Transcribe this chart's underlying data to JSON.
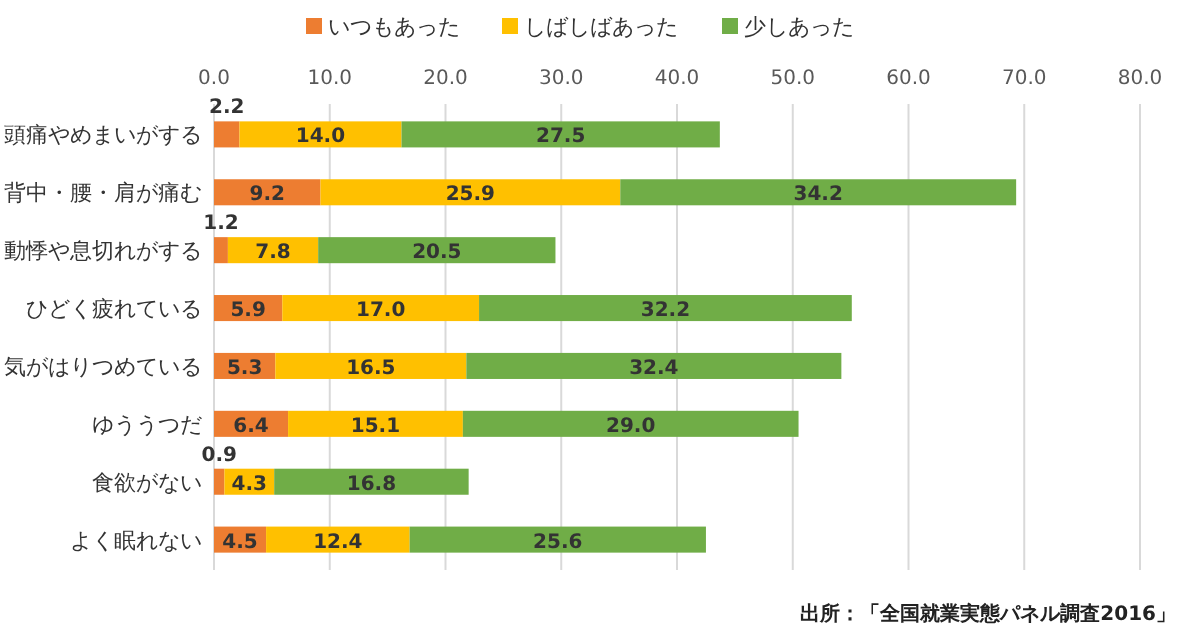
{
  "chart_data": {
    "type": "bar",
    "orientation": "horizontal",
    "stacked": true,
    "categories": [
      "頭痛やめまいがする",
      "背中・腰・肩が痛む",
      "動悸や息切れがする",
      "ひどく疲れている",
      "気がはりつめている",
      "ゆううつだ",
      "食欲がない",
      "よく眠れない"
    ],
    "series": [
      {
        "name": "いつもあった",
        "color": "#ed7d31",
        "values": [
          2.2,
          9.2,
          1.2,
          5.9,
          5.3,
          6.4,
          0.9,
          4.5
        ],
        "value_labels": [
          "2.2",
          "9.2",
          "1.2",
          "5.9",
          "5.3",
          "6.4",
          "0.9",
          "4.5"
        ]
      },
      {
        "name": "しばしばあった",
        "color": "#ffc000",
        "values": [
          14.0,
          25.9,
          7.8,
          17.0,
          16.5,
          15.1,
          4.3,
          12.4
        ],
        "value_labels": [
          "14.0",
          "25.9",
          "7.8",
          "17.0",
          "16.5",
          "15.1",
          "4.3",
          "12.4"
        ]
      },
      {
        "name": "少しあった",
        "color": "#70ad47",
        "values": [
          27.5,
          34.2,
          20.5,
          32.2,
          32.4,
          29.0,
          16.8,
          25.6
        ],
        "value_labels": [
          "27.5",
          "34.2",
          "20.5",
          "32.2",
          "32.4",
          "29.0",
          "16.8",
          "25.6"
        ]
      }
    ],
    "xlim": [
      0,
      80
    ],
    "xticks": [
      {
        "value": 0,
        "label": "0.0"
      },
      {
        "value": 10,
        "label": "10.0"
      },
      {
        "value": 20,
        "label": "20.0"
      },
      {
        "value": 30,
        "label": "30.0"
      },
      {
        "value": 40,
        "label": "40.0"
      },
      {
        "value": 50,
        "label": "50.0"
      },
      {
        "value": 60,
        "label": "60.0"
      },
      {
        "value": 70,
        "label": "70.0"
      },
      {
        "value": 80,
        "label": "80.0"
      }
    ],
    "grid": "x",
    "legend": "top",
    "annotations": [
      "出所：「全国就業実態パネル調査2016」"
    ]
  }
}
